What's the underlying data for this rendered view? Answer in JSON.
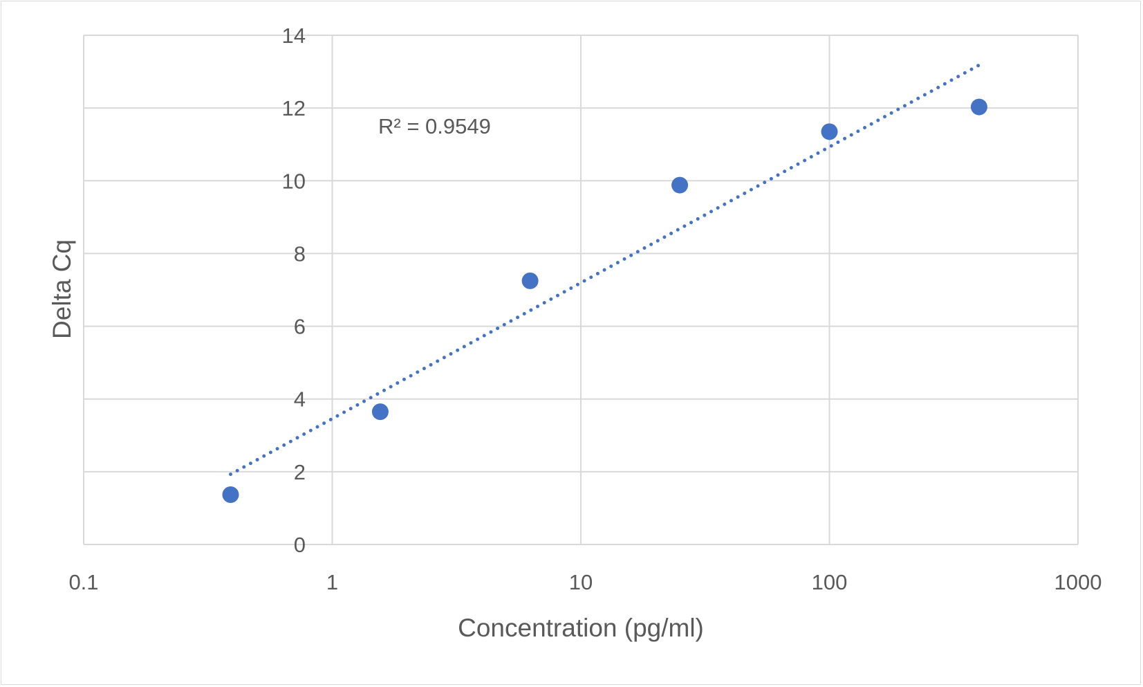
{
  "chart_data": {
    "type": "scatter",
    "title": "",
    "xlabel": "Concentration (pg/ml)",
    "ylabel": "Delta Cq",
    "xscale": "log",
    "xlim": [
      0.1,
      1000
    ],
    "ylim": [
      0,
      14
    ],
    "x_ticks": [
      0.1,
      1,
      10,
      100,
      1000
    ],
    "x_tick_labels": [
      "0.1",
      "1",
      "10",
      "100",
      "1000"
    ],
    "y_ticks": [
      0,
      2,
      4,
      6,
      8,
      10,
      12,
      14
    ],
    "y_tick_labels": [
      "0",
      "2",
      "4",
      "6",
      "8",
      "10",
      "12",
      "14"
    ],
    "grid": true,
    "legend": "none",
    "series": [
      {
        "color": "#4472c4",
        "x": [
          0.39,
          1.56,
          6.25,
          25,
          100,
          400
        ],
        "y": [
          1.37,
          3.65,
          7.25,
          9.88,
          11.35,
          12.03
        ]
      }
    ],
    "trendline": {
      "type": "logarithmic",
      "style": "dotted",
      "color": "#4472c4",
      "x_range": [
        0.39,
        400
      ],
      "y_range": [
        1.93,
        13.18
      ],
      "r_squared_label": "R² = 0.9549"
    },
    "colors": {
      "grid": "#d9d9d9",
      "text": "#595959",
      "marker": "#4472c4"
    }
  }
}
